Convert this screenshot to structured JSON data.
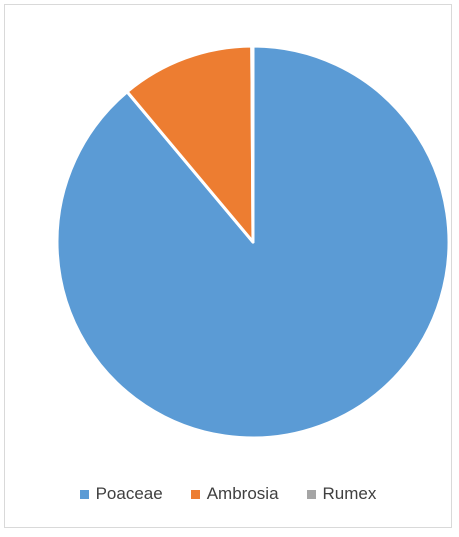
{
  "chart_data": {
    "type": "pie",
    "title": "",
    "categories": [
      "Poaceae",
      "Ambrosia",
      "Rumex"
    ],
    "values": [
      88.9,
      11.0,
      0.1
    ],
    "colors": [
      "#5b9bd5",
      "#ed7d31",
      "#a5a5a5"
    ],
    "legend_position": "bottom"
  }
}
